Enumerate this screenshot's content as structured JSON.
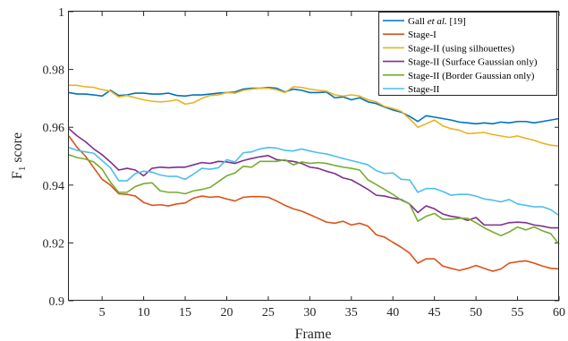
{
  "chart_data": {
    "type": "line",
    "xlabel": "Frame",
    "ylabel": "F",
    "ylabel_sub": "1",
    "ylabel_rest": " score",
    "xlim": [
      1,
      60
    ],
    "ylim": [
      0.9,
      1.0
    ],
    "xticks": [
      5,
      10,
      15,
      20,
      25,
      30,
      35,
      40,
      45,
      50,
      55,
      60
    ],
    "yticks": [
      0.9,
      0.92,
      0.94,
      0.96,
      0.98,
      1
    ],
    "ytick_labels": [
      "0.9",
      "0.92",
      "0.94",
      "0.96",
      "0.98",
      "1"
    ],
    "legend_position": "top-right",
    "x": [
      1,
      2,
      3,
      4,
      5,
      6,
      7,
      8,
      9,
      10,
      11,
      12,
      13,
      14,
      15,
      16,
      17,
      18,
      19,
      20,
      21,
      22,
      23,
      24,
      25,
      26,
      27,
      28,
      29,
      30,
      31,
      32,
      33,
      34,
      35,
      36,
      37,
      38,
      39,
      40,
      41,
      42,
      43,
      44,
      45,
      46,
      47,
      48,
      49,
      50,
      51,
      52,
      53,
      54,
      55,
      56,
      57,
      58,
      59,
      60
    ],
    "series": [
      {
        "name": "Gall et al. [19]",
        "name_parts": [
          "Gall ",
          "et al.",
          " [19]"
        ],
        "color": "#0072BD",
        "values": [
          0.972,
          0.9715,
          0.9715,
          0.9712,
          0.9708,
          0.9728,
          0.971,
          0.9712,
          0.9718,
          0.9718,
          0.9715,
          0.9715,
          0.9718,
          0.971,
          0.9708,
          0.9712,
          0.9712,
          0.9715,
          0.9718,
          0.972,
          0.9722,
          0.9732,
          0.9735,
          0.9735,
          0.9738,
          0.9735,
          0.9722,
          0.9732,
          0.9728,
          0.972,
          0.972,
          0.9722,
          0.9702,
          0.9705,
          0.9695,
          0.9702,
          0.9688,
          0.9682,
          0.967,
          0.966,
          0.9652,
          0.9638,
          0.962,
          0.964,
          0.9635,
          0.963,
          0.9625,
          0.9618,
          0.9615,
          0.9612,
          0.9615,
          0.9612,
          0.9618,
          0.9615,
          0.962,
          0.962,
          0.9615,
          0.962,
          0.9625,
          0.963
        ]
      },
      {
        "name": "Stage-I",
        "color": "#D95319",
        "values": [
          0.957,
          0.953,
          0.95,
          0.946,
          0.942,
          0.94,
          0.937,
          0.9368,
          0.9362,
          0.934,
          0.933,
          0.9332,
          0.9328,
          0.9335,
          0.9338,
          0.9355,
          0.9362,
          0.9358,
          0.936,
          0.9352,
          0.9345,
          0.9358,
          0.936,
          0.936,
          0.9358,
          0.9345,
          0.933,
          0.9318,
          0.931,
          0.9298,
          0.9285,
          0.9272,
          0.9268,
          0.9275,
          0.9262,
          0.9268,
          0.9258,
          0.9228,
          0.922,
          0.9202,
          0.9185,
          0.9165,
          0.913,
          0.9145,
          0.9145,
          0.912,
          0.9112,
          0.9105,
          0.9112,
          0.9122,
          0.9112,
          0.9102,
          0.911,
          0.913,
          0.9135,
          0.9138,
          0.913,
          0.912,
          0.9112,
          0.911
        ]
      },
      {
        "name": "Stage-II (using silhouettes)",
        "color": "#EDB120",
        "values": [
          0.9745,
          0.9745,
          0.974,
          0.9738,
          0.973,
          0.9725,
          0.9705,
          0.971,
          0.9702,
          0.9695,
          0.969,
          0.9688,
          0.969,
          0.9695,
          0.968,
          0.9685,
          0.97,
          0.971,
          0.9712,
          0.972,
          0.9718,
          0.9728,
          0.9732,
          0.9735,
          0.9735,
          0.973,
          0.972,
          0.974,
          0.9738,
          0.9732,
          0.9728,
          0.9725,
          0.9712,
          0.9708,
          0.9712,
          0.9708,
          0.9695,
          0.9688,
          0.9672,
          0.9665,
          0.9655,
          0.963,
          0.96,
          0.9612,
          0.9625,
          0.9605,
          0.9595,
          0.959,
          0.9578,
          0.958,
          0.9582,
          0.9575,
          0.957,
          0.9565,
          0.957,
          0.9562,
          0.9555,
          0.9545,
          0.9538,
          0.9535
        ]
      },
      {
        "name": "Stage-II (Surface Gaussian only)",
        "color": "#7E2F8E",
        "values": [
          0.9595,
          0.957,
          0.955,
          0.9525,
          0.9505,
          0.948,
          0.9452,
          0.9458,
          0.9452,
          0.9432,
          0.9458,
          0.9462,
          0.946,
          0.9462,
          0.9462,
          0.947,
          0.9478,
          0.9475,
          0.9482,
          0.948,
          0.9475,
          0.9485,
          0.9492,
          0.9498,
          0.9502,
          0.9488,
          0.9485,
          0.9482,
          0.9475,
          0.9462,
          0.9458,
          0.9448,
          0.944,
          0.9425,
          0.9418,
          0.9402,
          0.9385,
          0.9365,
          0.9362,
          0.9355,
          0.935,
          0.9335,
          0.9305,
          0.9328,
          0.9318,
          0.93,
          0.9292,
          0.9288,
          0.9278,
          0.9288,
          0.9262,
          0.9262,
          0.9262,
          0.927,
          0.9272,
          0.927,
          0.9262,
          0.9258,
          0.9252,
          0.9252
        ]
      },
      {
        "name": "Stage-II (Border Gaussian only)",
        "color": "#77AC30",
        "values": [
          0.9505,
          0.9495,
          0.949,
          0.948,
          0.9455,
          0.941,
          0.9375,
          0.9375,
          0.9395,
          0.9405,
          0.9408,
          0.938,
          0.9375,
          0.9375,
          0.937,
          0.938,
          0.9385,
          0.9392,
          0.9412,
          0.9432,
          0.9442,
          0.9465,
          0.9462,
          0.9482,
          0.9482,
          0.9482,
          0.9488,
          0.947,
          0.948,
          0.9475,
          0.9478,
          0.9475,
          0.9468,
          0.9462,
          0.9458,
          0.9452,
          0.9418,
          0.9402,
          0.9385,
          0.9368,
          0.9348,
          0.9335,
          0.9275,
          0.9292,
          0.9302,
          0.9282,
          0.9282,
          0.9285,
          0.9285,
          0.927,
          0.9252,
          0.9238,
          0.9225,
          0.9238,
          0.9255,
          0.9245,
          0.9255,
          0.9242,
          0.9232,
          0.9195
        ]
      },
      {
        "name": "Stage-II",
        "color": "#4DBEEE",
        "values": [
          0.953,
          0.952,
          0.9515,
          0.951,
          0.9485,
          0.946,
          0.9415,
          0.9415,
          0.944,
          0.9448,
          0.9445,
          0.9435,
          0.943,
          0.943,
          0.942,
          0.9438,
          0.9458,
          0.9455,
          0.946,
          0.9488,
          0.948,
          0.9512,
          0.9515,
          0.9525,
          0.953,
          0.9528,
          0.952,
          0.9518,
          0.9525,
          0.9518,
          0.9512,
          0.9508,
          0.95,
          0.9492,
          0.9485,
          0.9478,
          0.947,
          0.945,
          0.944,
          0.9442,
          0.942,
          0.9418,
          0.9375,
          0.9388,
          0.9388,
          0.9378,
          0.9365,
          0.9368,
          0.9368,
          0.9362,
          0.9352,
          0.9348,
          0.9342,
          0.935,
          0.9335,
          0.933,
          0.9325,
          0.9325,
          0.9315,
          0.9295
        ]
      }
    ]
  }
}
